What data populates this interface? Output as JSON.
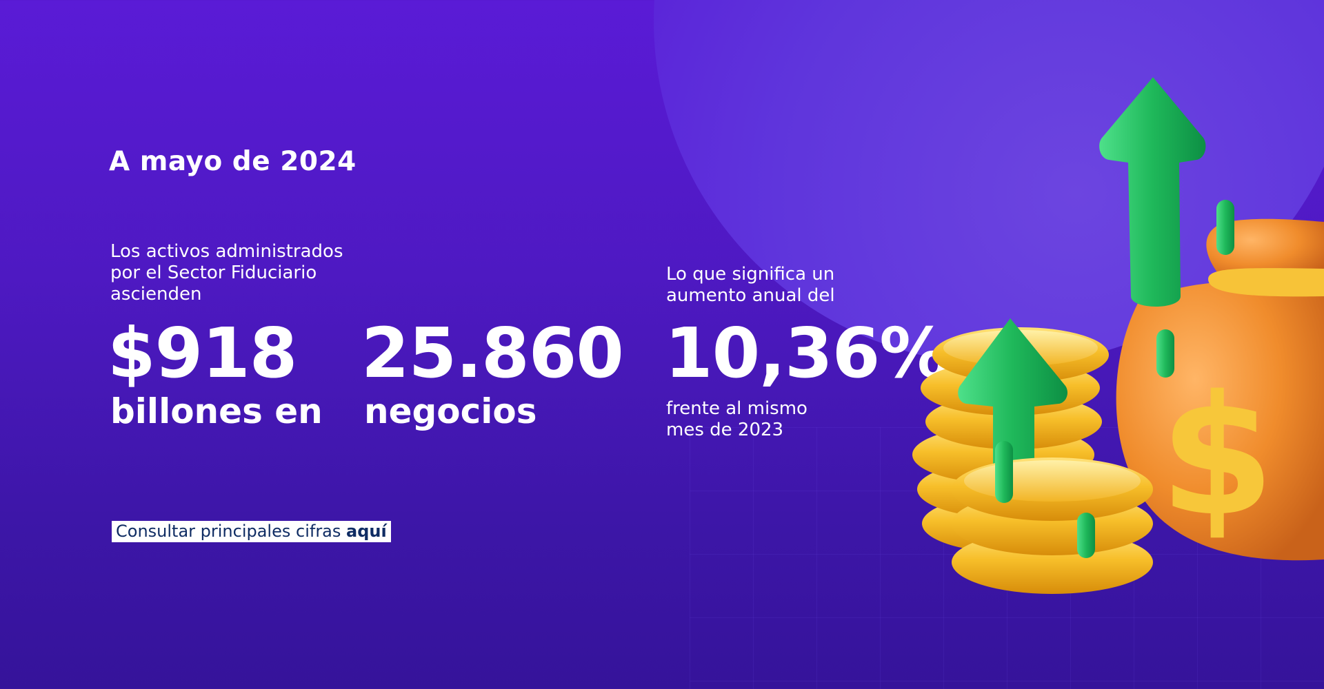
{
  "header": {
    "title": "A mayo de 2024"
  },
  "stats": {
    "assets_description": "Los activos administrados\npor el Sector Fiduciario\nascienden",
    "assets_value": "$918",
    "assets_unit": "billones en",
    "business_value": "25.860",
    "business_unit": "negocios",
    "increase_description": "Lo que significa un\naumento anual del",
    "increase_value": "10,36%",
    "increase_comparison": "frente al mismo\nmes de 2023"
  },
  "cta": {
    "label": "Consultar principales cifras",
    "link_text": "aquí"
  },
  "illustration": {
    "icons": [
      "coin-stack-icon",
      "money-bag-icon",
      "dollar-sign-icon",
      "up-arrow-icon"
    ],
    "bag_symbol": "$"
  },
  "colors": {
    "background": "#4e19c2",
    "text": "#ffffff",
    "link_text": "#0f2c63",
    "coin": "#f5b320",
    "bag": "#f08c2c",
    "arrow": "#1fb85a"
  }
}
